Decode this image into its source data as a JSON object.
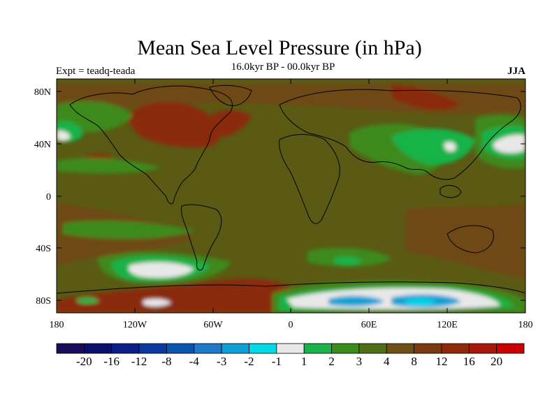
{
  "title": "Mean Sea Level Pressure (in hPa)",
  "subtitle": "16.0kyr BP - 00.0kyr BP",
  "left_label": "Expt = teadq-teada",
  "right_label": "JJA",
  "axes": {
    "lat_ticks": [
      "80N",
      "40N",
      "0",
      "40S",
      "80S"
    ],
    "lon_ticks": [
      "180",
      "120W",
      "60W",
      "0",
      "60E",
      "120E",
      "180"
    ]
  },
  "colorbar": {
    "colors": [
      "#1a0a5a",
      "#0a0f6e",
      "#0a1e8a",
      "#0a3aa0",
      "#0a55b0",
      "#1f78c8",
      "#0ea0d4",
      "#00d9e6",
      "#e8e8e8",
      "#19b34a",
      "#3d8a1e",
      "#4f6e16",
      "#6e5014",
      "#7a3a12",
      "#8e2a0a",
      "#a8180a",
      "#cc0000"
    ],
    "labels": [
      "-20",
      "-16",
      "-12",
      "-8",
      "-4",
      "-3",
      "-2",
      "-1",
      "1",
      "2",
      "3",
      "4",
      "8",
      "12",
      "16",
      "20"
    ]
  },
  "map_colors": {
    "base": "#5a5a14",
    "ocean_high": "#6e4a12",
    "strong_high": "#8a2a0c",
    "slight_low": "#3d8a1e",
    "low": "#19b34a",
    "near_zero": "#e8e8e8",
    "neg": "#0ea0d4",
    "neg_strong": "#00d9e6",
    "coast": "#000000"
  }
}
